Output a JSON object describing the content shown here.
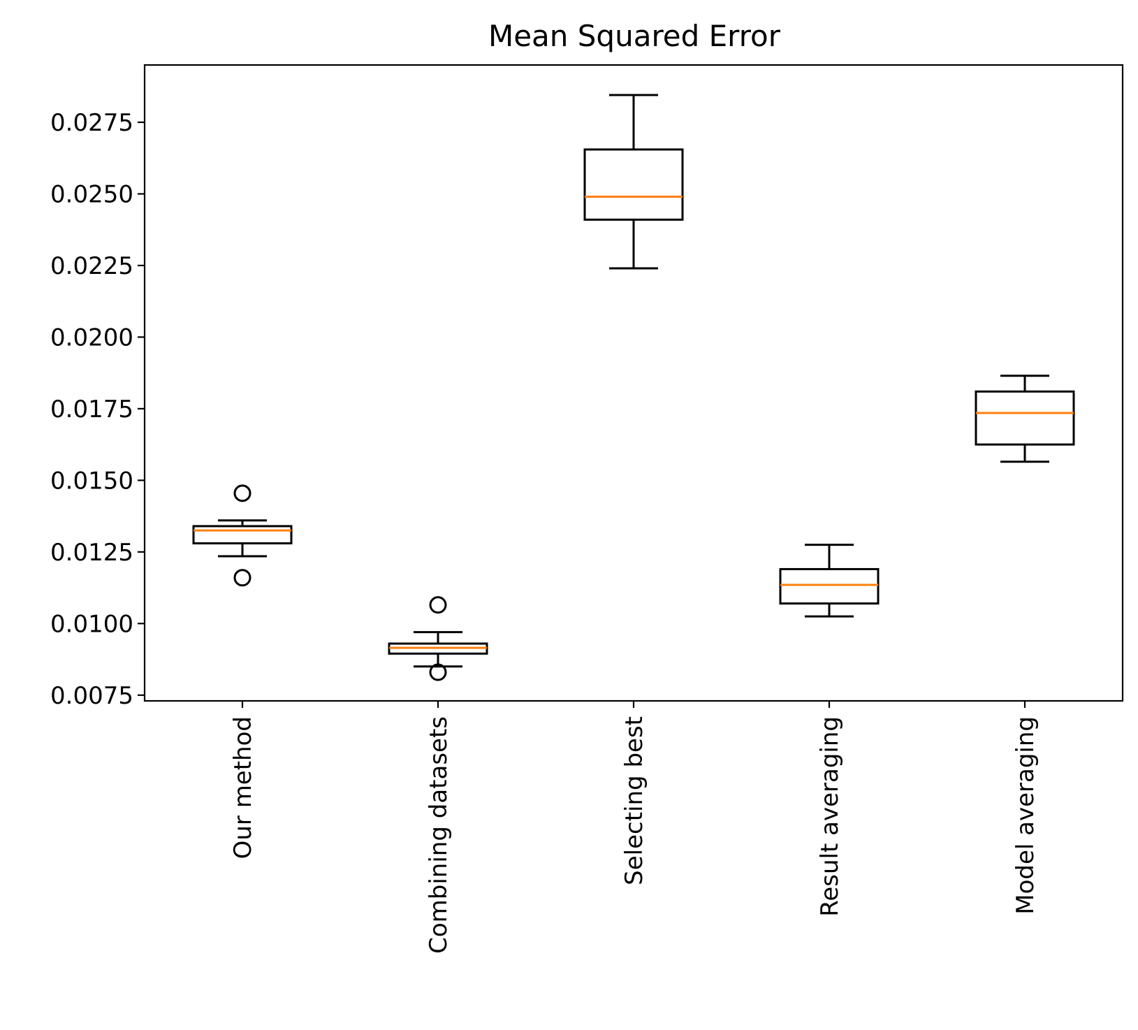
{
  "chart_data": {
    "type": "box",
    "title": "Mean Squared Error",
    "xlabel": "",
    "ylabel": "",
    "ylim": [
      0.0073,
      0.0295
    ],
    "yticks": [
      "0.0075",
      "0.0100",
      "0.0125",
      "0.0150",
      "0.0175",
      "0.0200",
      "0.0225",
      "0.0250",
      "0.0275"
    ],
    "ytick_values": [
      0.0075,
      0.01,
      0.0125,
      0.015,
      0.0175,
      0.02,
      0.0225,
      0.025,
      0.0275
    ],
    "categories": [
      "Our method",
      "Combining datasets",
      "Selecting best",
      "Result averaging",
      "Model averaging"
    ],
    "boxes": [
      {
        "whislo": 0.01235,
        "q1": 0.0128,
        "med": 0.01325,
        "q3": 0.0134,
        "whishi": 0.0136,
        "fliers": [
          0.0116,
          0.01455
        ]
      },
      {
        "whislo": 0.0085,
        "q1": 0.00895,
        "med": 0.00915,
        "q3": 0.0093,
        "whishi": 0.0097,
        "fliers": [
          0.0083,
          0.01065
        ]
      },
      {
        "whislo": 0.0224,
        "q1": 0.0241,
        "med": 0.0249,
        "q3": 0.02655,
        "whishi": 0.02845,
        "fliers": []
      },
      {
        "whislo": 0.01025,
        "q1": 0.0107,
        "med": 0.01135,
        "q3": 0.0119,
        "whishi": 0.01275,
        "fliers": []
      },
      {
        "whislo": 0.01565,
        "q1": 0.01625,
        "med": 0.01735,
        "q3": 0.0181,
        "whishi": 0.01865,
        "fliers": []
      }
    ],
    "grid": false,
    "colors": {
      "box": "#000000",
      "median": "#ff7f0e",
      "flier": "#000000"
    }
  }
}
